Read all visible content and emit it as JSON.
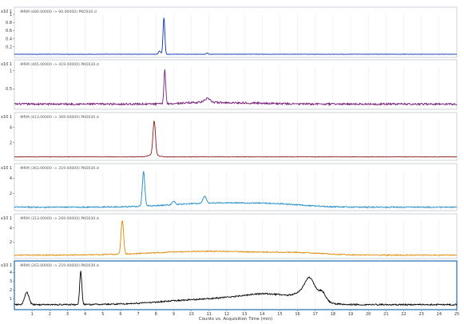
{
  "app": {
    "xlabel": "Counts vs. Acquisition Time (min)"
  },
  "chart_data": [
    {
      "type": "line",
      "scale_label": "x10 1",
      "header": "-MRM (480.00000 -> 90.00000) PKO030.d",
      "color": "#0a2fb4",
      "ylim": [
        0,
        1.0
      ],
      "yticks": [
        0.2,
        0.4,
        0.6,
        0.8,
        1.0
      ],
      "xlim": [
        0,
        25
      ],
      "baseline": 0.02,
      "noise": 0.004,
      "trend": [],
      "peaks": [
        [
          8.45,
          0.9,
          0.05
        ],
        [
          8.2,
          0.08,
          0.06
        ],
        [
          10.9,
          0.03,
          0.05
        ]
      ]
    },
    {
      "type": "line",
      "scale_label": "x10 1",
      "header": "-MRM (465.00000 -> 419.00000) PKO030.d",
      "color": "#7a1a7a",
      "ylim": [
        0,
        1.1
      ],
      "yticks": [
        0.5,
        1.0
      ],
      "xlim": [
        0,
        25
      ],
      "baseline": 0.08,
      "noise": 0.025,
      "trend": [
        [
          10.5,
          0.04,
          1.0
        ],
        [
          13,
          0.03,
          1.5
        ]
      ],
      "peaks": [
        [
          8.5,
          0.95,
          0.05
        ],
        [
          10.9,
          0.1,
          0.15
        ]
      ]
    },
    {
      "type": "line",
      "scale_label": "x10 1",
      "header": "-MRM (413.00000 -> 369.00000) PKO030.d",
      "color": "#8b1a1a",
      "ylim": [
        0,
        5
      ],
      "yticks": [
        2,
        4
      ],
      "xlim": [
        0,
        25
      ],
      "baseline": 0.15,
      "noise": 0.03,
      "trend": [],
      "peaks": [
        [
          7.9,
          4.4,
          0.07
        ],
        [
          7.85,
          0.3,
          0.25
        ]
      ]
    },
    {
      "type": "line",
      "scale_label": "x10 1",
      "header": "-MRM (363.00000 -> 319.00000) PKO030.d",
      "color": "#1a8ac8",
      "ylim": [
        0,
        5
      ],
      "yticks": [
        2,
        4
      ],
      "xlim": [
        0,
        25
      ],
      "baseline": 0.15,
      "noise": 0.08,
      "trend": [
        [
          11.5,
          0.55,
          2.5
        ],
        [
          15,
          0.25,
          1.5
        ]
      ],
      "peaks": [
        [
          7.3,
          4.6,
          0.07
        ],
        [
          9.0,
          0.5,
          0.07
        ],
        [
          10.75,
          0.9,
          0.1
        ]
      ]
    },
    {
      "type": "line",
      "scale_label": "x10 1",
      "header": "-MRM (313.00000 -> 269.00000) PKO030.d",
      "color": "#e08a00",
      "ylim": [
        0,
        5
      ],
      "yticks": [
        2,
        4
      ],
      "xlim": [
        0,
        25
      ],
      "baseline": 0.15,
      "noise": 0.07,
      "trend": [
        [
          11,
          0.55,
          3.0
        ],
        [
          16,
          0.25,
          1.5
        ]
      ],
      "peaks": [
        [
          6.1,
          4.9,
          0.07
        ]
      ]
    },
    {
      "type": "line",
      "scale_label": "x10 1",
      "header": "-MRM (263.00000 -> 219.00000) PKO030.d",
      "color": "#000000",
      "ylim": [
        0,
        4.5
      ],
      "yticks": [
        1,
        2,
        3,
        4
      ],
      "xlim": [
        0,
        25
      ],
      "xticks": [
        1,
        2,
        3,
        4,
        5,
        6,
        7,
        8,
        9,
        10,
        11,
        12,
        13,
        14,
        15,
        16,
        17,
        18,
        19,
        20,
        21,
        22,
        23,
        24,
        25
      ],
      "baseline": 0.3,
      "noise": 0.08,
      "trend": [
        [
          11,
          0.6,
          2.5
        ],
        [
          14.5,
          1.0,
          1.6
        ],
        [
          16.6,
          1.2,
          0.55
        ]
      ],
      "peaks": [
        [
          0.7,
          1.4,
          0.12
        ],
        [
          3.75,
          3.8,
          0.06
        ],
        [
          16.7,
          1.5,
          0.25
        ],
        [
          17.4,
          0.9,
          0.2
        ]
      ]
    }
  ]
}
